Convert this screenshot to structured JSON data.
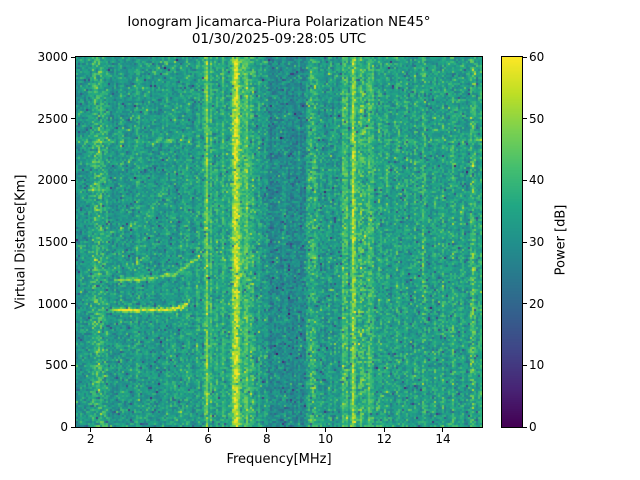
{
  "title": {
    "line1": "Ionogram Jicamarca-Piura Polarization NE45°",
    "line2": "01/30/2025-09:28:05 UTC"
  },
  "chart_data": {
    "type": "heatmap",
    "title": "Ionogram Jicamarca-Piura Polarization NE45°",
    "subtitle": "01/30/2025-09:28:05 UTC",
    "xlabel": "Frequency[MHz]",
    "ylabel": "Virtual Distance[Km]",
    "colorbar_label": "Power [dB]",
    "xlim": [
      1.5,
      15.33
    ],
    "ylim": [
      0,
      3000
    ],
    "clim": [
      0,
      60
    ],
    "xticks": [
      2,
      4,
      6,
      8,
      10,
      12,
      14
    ],
    "yticks": [
      0,
      500,
      1000,
      1500,
      2000,
      2500,
      3000
    ],
    "colorbar_ticks": [
      0,
      10,
      20,
      30,
      40,
      50,
      60
    ],
    "colormap": "viridis",
    "colormap_stops": [
      [
        0.0,
        "#440154"
      ],
      [
        0.1,
        "#482475"
      ],
      [
        0.2,
        "#414487"
      ],
      [
        0.3,
        "#355f8d"
      ],
      [
        0.4,
        "#2a788e"
      ],
      [
        0.5,
        "#21918c"
      ],
      [
        0.6,
        "#22a884"
      ],
      [
        0.7,
        "#44bf70"
      ],
      [
        0.8,
        "#7ad151"
      ],
      [
        0.9,
        "#bddf26"
      ],
      [
        1.0,
        "#fde725"
      ]
    ],
    "seed": 7,
    "background_noise": {
      "base_db": 31.5,
      "noise_db": 3.8,
      "column_var_db": 1.6,
      "dark_speckle_fraction": 0.035,
      "dark_speckle_db": 14,
      "bright_speckle_fraction": 0.06,
      "bright_speckle_db": 7
    },
    "dark_bands": [
      {
        "f0": 8.05,
        "f1": 9.35,
        "delta_db": -4
      },
      {
        "f0": 9.75,
        "f1": 10.45,
        "delta_db": -1.5
      },
      {
        "f0": 2.6,
        "f1": 3.0,
        "delta_db": -1
      }
    ],
    "rfi_stripes": [
      {
        "f": 2.25,
        "hw": 0.16,
        "db": 10,
        "speckle": 1
      },
      {
        "f": 2.55,
        "hw": 0.05,
        "db": 5,
        "speckle": 1
      },
      {
        "f": 3.05,
        "hw": 0.05,
        "db": 5,
        "speckle": 1
      },
      {
        "f": 3.6,
        "hw": 0.04,
        "db": 5,
        "speckle": 0
      },
      {
        "f": 4.1,
        "hw": 0.03,
        "db": 4,
        "speckle": 0
      },
      {
        "f": 4.6,
        "hw": 0.03,
        "db": 4,
        "speckle": 0
      },
      {
        "f": 4.85,
        "hw": 0.03,
        "db": 4,
        "speckle": 1
      },
      {
        "f": 5.1,
        "hw": 0.04,
        "db": 6,
        "speckle": 1
      },
      {
        "f": 5.31,
        "hw": 0.04,
        "db": 6,
        "speckle": 0
      },
      {
        "f": 5.65,
        "hw": 0.04,
        "db": 6,
        "speckle": 1
      },
      {
        "f": 5.95,
        "hw": 0.05,
        "db": 16,
        "speckle": 0
      },
      {
        "f": 6.1,
        "hw": 0.03,
        "db": 9,
        "speckle": 0
      },
      {
        "f": 6.28,
        "hw": 0.03,
        "db": 6,
        "speckle": 0
      },
      {
        "f": 6.5,
        "hw": 0.04,
        "db": 7,
        "speckle": 0
      },
      {
        "f": 6.95,
        "hw": 0.11,
        "db": 24,
        "speckle": 0
      },
      {
        "f": 7.3,
        "hw": 0.06,
        "db": 13,
        "speckle": 0
      },
      {
        "f": 7.5,
        "hw": 0.05,
        "db": 10,
        "speckle": 1
      },
      {
        "f": 7.75,
        "hw": 0.04,
        "db": 6,
        "speckle": 0
      },
      {
        "f": 8.3,
        "hw": 0.03,
        "db": 3,
        "speckle": 1
      },
      {
        "f": 8.6,
        "hw": 0.03,
        "db": 5,
        "speckle": 0
      },
      {
        "f": 9.1,
        "hw": 0.03,
        "db": 4,
        "speckle": 0
      },
      {
        "f": 9.55,
        "hw": 0.13,
        "db": 8,
        "speckle": 1
      },
      {
        "f": 9.9,
        "hw": 0.04,
        "db": 5,
        "speckle": 1
      },
      {
        "f": 10.15,
        "hw": 0.04,
        "db": 6,
        "speckle": 1
      },
      {
        "f": 10.35,
        "hw": 0.03,
        "db": 5,
        "speckle": 0
      },
      {
        "f": 10.62,
        "hw": 0.04,
        "db": 14,
        "speckle": 0
      },
      {
        "f": 10.73,
        "hw": 0.03,
        "db": 9,
        "speckle": 0
      },
      {
        "f": 10.95,
        "hw": 0.06,
        "db": 22,
        "speckle": 0
      },
      {
        "f": 11.25,
        "hw": 0.12,
        "db": 11,
        "speckle": 1
      },
      {
        "f": 11.5,
        "hw": 0.05,
        "db": 11,
        "speckle": 0
      },
      {
        "f": 11.62,
        "hw": 0.03,
        "db": 7,
        "speckle": 0
      },
      {
        "f": 11.85,
        "hw": 0.04,
        "db": 7,
        "speckle": 1
      },
      {
        "f": 12.1,
        "hw": 0.05,
        "db": 7,
        "speckle": 1
      },
      {
        "f": 12.45,
        "hw": 0.05,
        "db": 8,
        "speckle": 1
      },
      {
        "f": 12.75,
        "hw": 0.04,
        "db": 6,
        "speckle": 1
      },
      {
        "f": 13.05,
        "hw": 0.04,
        "db": 7,
        "speckle": 1
      },
      {
        "f": 13.35,
        "hw": 0.06,
        "db": 8,
        "speckle": 1
      },
      {
        "f": 13.7,
        "hw": 0.04,
        "db": 6,
        "speckle": 1
      },
      {
        "f": 14.0,
        "hw": 0.04,
        "db": 7,
        "speckle": 1
      },
      {
        "f": 14.35,
        "hw": 0.06,
        "db": 8,
        "speckle": 1
      },
      {
        "f": 14.65,
        "hw": 0.04,
        "db": 6,
        "speckle": 1
      },
      {
        "f": 15.0,
        "hw": 0.07,
        "db": 12,
        "speckle": 1
      },
      {
        "f": 15.28,
        "hw": 0.04,
        "db": 8,
        "speckle": 0
      }
    ],
    "echo_traces": [
      {
        "name": "first-hop-echo",
        "points": [
          [
            2.6,
            945
          ],
          [
            4.6,
            950
          ],
          [
            5.2,
            975
          ],
          [
            5.45,
            1060
          ]
        ],
        "db": 26,
        "sigma_rows": 0.7,
        "dashed": 0
      },
      {
        "name": "second-hop-echo",
        "points": [
          [
            2.7,
            1190
          ],
          [
            4.0,
            1200
          ],
          [
            4.9,
            1240
          ],
          [
            5.6,
            1360
          ],
          [
            5.95,
            1480
          ]
        ],
        "db": 17,
        "sigma_rows": 0.6,
        "dashed": 0
      },
      {
        "name": "faint-echo-1300",
        "points": [
          [
            2.5,
            1265
          ],
          [
            3.5,
            1325
          ],
          [
            4.3,
            1425
          ]
        ],
        "db": 8,
        "sigma_rows": 0.6,
        "dashed": 1
      },
      {
        "name": "third-hop-echo",
        "points": [
          [
            2.45,
            1555
          ],
          [
            3.3,
            1625
          ],
          [
            4.0,
            1715
          ],
          [
            4.55,
            1990
          ]
        ],
        "db": 11,
        "sigma_rows": 0.6,
        "dashed": 1
      },
      {
        "name": "dash-1930",
        "points": [
          [
            1.8,
            1925
          ],
          [
            2.7,
            1935
          ]
        ],
        "db": 8,
        "sigma_rows": 0.6,
        "dashed": 1
      },
      {
        "name": "high-arc-2120",
        "points": [
          [
            2.9,
            2120
          ],
          [
            3.9,
            2235
          ],
          [
            4.6,
            2400
          ]
        ],
        "db": 10,
        "sigma_rows": 0.6,
        "dashed": 1
      },
      {
        "name": "high-arc-2400",
        "points": [
          [
            2.9,
            2390
          ],
          [
            3.9,
            2555
          ],
          [
            4.45,
            2800
          ]
        ],
        "db": 10,
        "sigma_rows": 0.6,
        "dashed": 1
      },
      {
        "name": "high-arc-2800",
        "points": [
          [
            3.3,
            2730
          ],
          [
            4.2,
            2880
          ],
          [
            4.75,
            2995
          ]
        ],
        "db": 9,
        "sigma_rows": 0.6,
        "dashed": 1
      },
      {
        "name": "line-2320-left",
        "points": [
          [
            1.55,
            2318
          ],
          [
            5.5,
            2322
          ]
        ],
        "db": 11,
        "sigma_rows": 0.6,
        "dashed": 1
      },
      {
        "name": "line-2320-right",
        "points": [
          [
            11.7,
            2318
          ],
          [
            15.3,
            2322
          ]
        ],
        "db": 9,
        "sigma_rows": 0.55,
        "dashed": 1
      },
      {
        "name": "dash-500",
        "points": [
          [
            1.55,
            495
          ],
          [
            2.15,
            500
          ]
        ],
        "db": 7,
        "sigma_rows": 0.6,
        "dashed": 1
      }
    ]
  }
}
